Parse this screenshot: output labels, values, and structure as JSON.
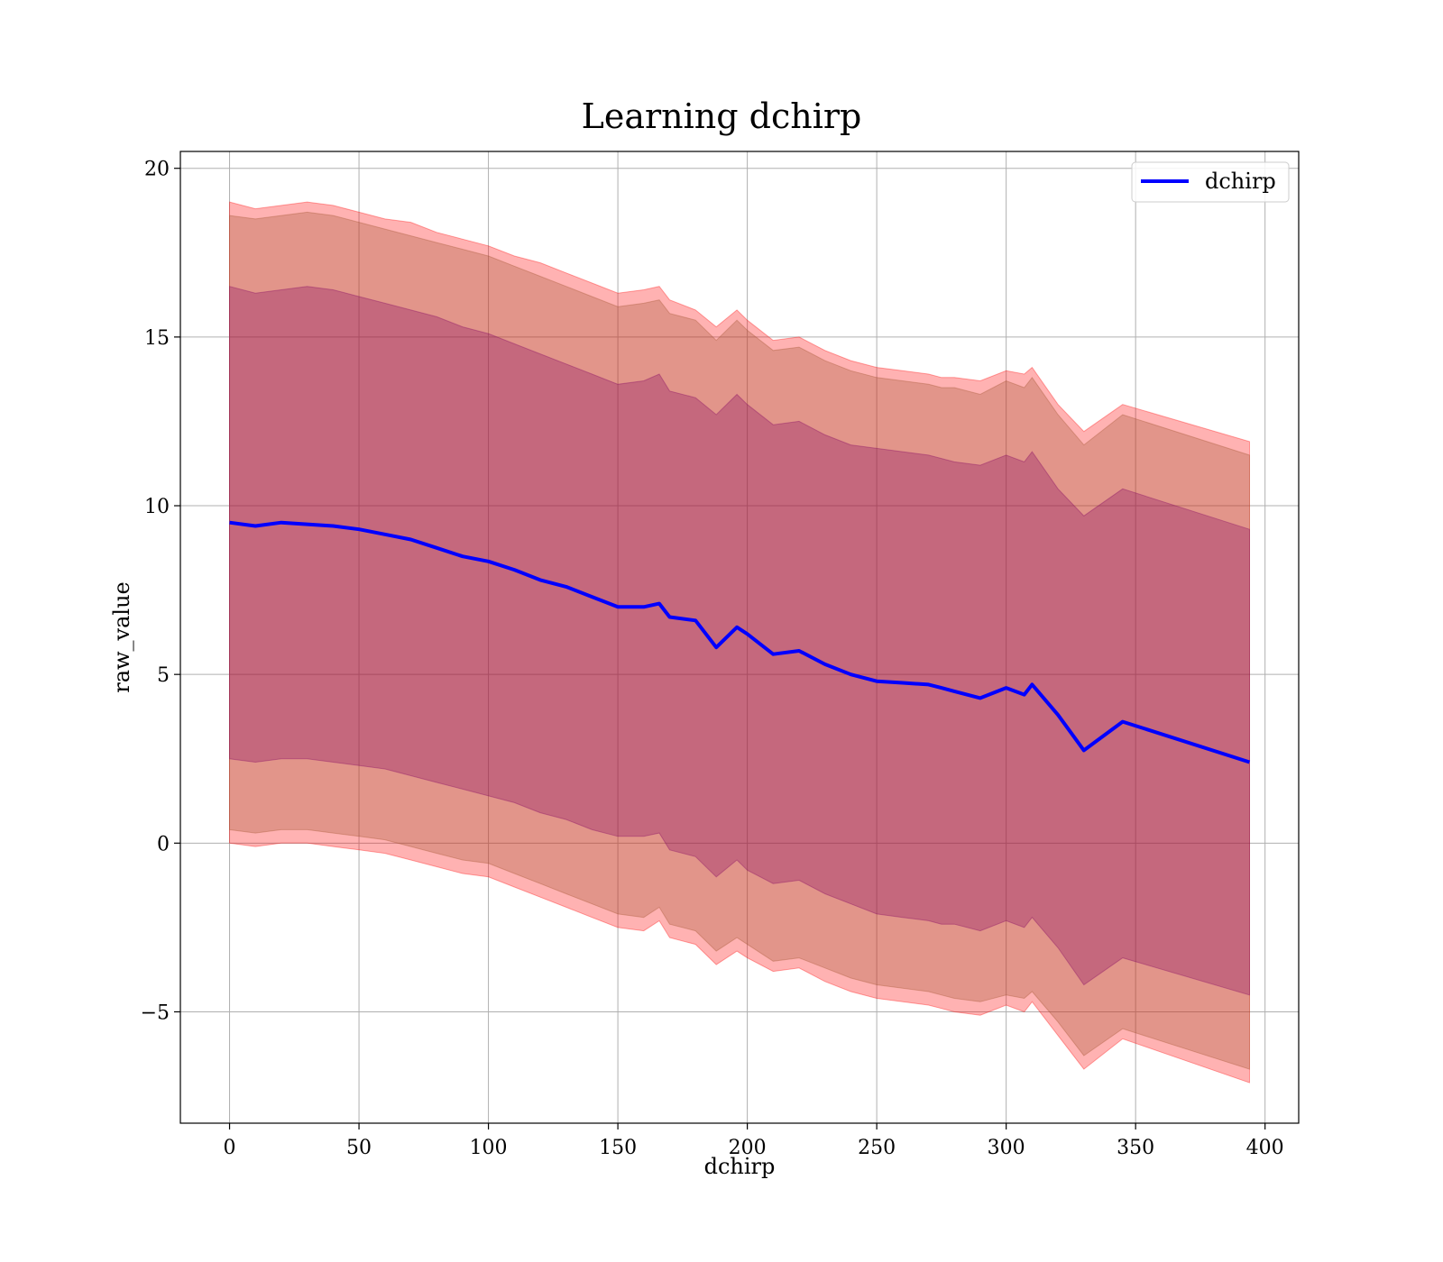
{
  "chart_data": {
    "type": "line",
    "title": "Learning dchirp",
    "xlabel": "dchirp",
    "ylabel": "raw_value",
    "xlim": [
      -19,
      413
    ],
    "ylim": [
      -8.3,
      20.5
    ],
    "x_ticks": [
      0,
      50,
      100,
      150,
      200,
      250,
      300,
      350,
      400
    ],
    "y_ticks": [
      -5,
      0,
      5,
      10,
      15,
      20
    ],
    "y_tick_labels": [
      "−5",
      "0",
      "5",
      "10",
      "15",
      "20"
    ],
    "grid": true,
    "legend": {
      "placement": "top-right",
      "entries": [
        "dchirp"
      ]
    },
    "colors": {
      "line": "#0000ff",
      "band_outer": "#ff0000",
      "band_mid": "#a0522d",
      "band_inner": "#800060"
    },
    "x": [
      0,
      10,
      20,
      30,
      40,
      50,
      60,
      70,
      80,
      90,
      100,
      110,
      120,
      130,
      140,
      150,
      160,
      166,
      170,
      180,
      188,
      196,
      200,
      210,
      220,
      230,
      240,
      250,
      260,
      270,
      275,
      280,
      290,
      300,
      307,
      310,
      320,
      330,
      345,
      394
    ],
    "series": [
      {
        "name": "dchirp",
        "values": [
          9.5,
          9.4,
          9.5,
          9.45,
          9.4,
          9.3,
          9.15,
          9.0,
          8.75,
          8.5,
          8.35,
          8.1,
          7.8,
          7.6,
          7.3,
          7.0,
          7.0,
          7.1,
          6.7,
          6.6,
          5.8,
          6.4,
          6.2,
          5.6,
          5.7,
          5.3,
          5.0,
          4.8,
          4.75,
          4.7,
          4.6,
          4.5,
          4.3,
          4.6,
          4.4,
          4.7,
          3.8,
          2.75,
          3.6,
          2.4
        ]
      }
    ],
    "bands": [
      {
        "level": "outer",
        "upper": [
          19.0,
          18.8,
          18.9,
          19.0,
          18.9,
          18.7,
          18.5,
          18.4,
          18.1,
          17.9,
          17.7,
          17.4,
          17.2,
          16.9,
          16.6,
          16.3,
          16.4,
          16.5,
          16.1,
          15.8,
          15.3,
          15.8,
          15.5,
          14.9,
          15.0,
          14.6,
          14.3,
          14.1,
          14.0,
          13.9,
          13.8,
          13.8,
          13.7,
          14.0,
          13.9,
          14.1,
          13.0,
          12.2,
          13.0,
          11.9
        ],
        "lower": [
          0.0,
          -0.1,
          0.0,
          0.0,
          -0.1,
          -0.2,
          -0.3,
          -0.5,
          -0.7,
          -0.9,
          -1.0,
          -1.3,
          -1.6,
          -1.9,
          -2.2,
          -2.5,
          -2.6,
          -2.3,
          -2.8,
          -3.0,
          -3.6,
          -3.2,
          -3.4,
          -3.8,
          -3.7,
          -4.1,
          -4.4,
          -4.6,
          -4.7,
          -4.8,
          -4.9,
          -5.0,
          -5.1,
          -4.8,
          -5.0,
          -4.7,
          -5.7,
          -6.7,
          -5.8,
          -7.1
        ]
      },
      {
        "level": "mid",
        "upper": [
          18.6,
          18.5,
          18.6,
          18.7,
          18.6,
          18.4,
          18.2,
          18.0,
          17.8,
          17.6,
          17.4,
          17.1,
          16.8,
          16.5,
          16.2,
          15.9,
          16.0,
          16.1,
          15.7,
          15.5,
          14.9,
          15.5,
          15.2,
          14.6,
          14.7,
          14.3,
          14.0,
          13.8,
          13.7,
          13.6,
          13.5,
          13.5,
          13.3,
          13.7,
          13.5,
          13.8,
          12.7,
          11.8,
          12.7,
          11.5
        ],
        "lower": [
          0.4,
          0.3,
          0.4,
          0.4,
          0.3,
          0.2,
          0.1,
          -0.1,
          -0.3,
          -0.5,
          -0.6,
          -0.9,
          -1.2,
          -1.5,
          -1.8,
          -2.1,
          -2.2,
          -1.9,
          -2.4,
          -2.6,
          -3.2,
          -2.8,
          -3.0,
          -3.5,
          -3.4,
          -3.7,
          -4.0,
          -4.2,
          -4.3,
          -4.4,
          -4.5,
          -4.6,
          -4.7,
          -4.5,
          -4.6,
          -4.4,
          -5.3,
          -6.3,
          -5.5,
          -6.7
        ]
      },
      {
        "level": "inner",
        "upper": [
          16.5,
          16.3,
          16.4,
          16.5,
          16.4,
          16.2,
          16.0,
          15.8,
          15.6,
          15.3,
          15.1,
          14.8,
          14.5,
          14.2,
          13.9,
          13.6,
          13.7,
          13.9,
          13.4,
          13.2,
          12.7,
          13.3,
          13.0,
          12.4,
          12.5,
          12.1,
          11.8,
          11.7,
          11.6,
          11.5,
          11.4,
          11.3,
          11.2,
          11.5,
          11.3,
          11.6,
          10.5,
          9.7,
          10.5,
          9.3
        ],
        "lower": [
          2.5,
          2.4,
          2.5,
          2.5,
          2.4,
          2.3,
          2.2,
          2.0,
          1.8,
          1.6,
          1.4,
          1.2,
          0.9,
          0.7,
          0.4,
          0.2,
          0.2,
          0.3,
          -0.2,
          -0.4,
          -1.0,
          -0.5,
          -0.8,
          -1.2,
          -1.1,
          -1.5,
          -1.8,
          -2.1,
          -2.2,
          -2.3,
          -2.4,
          -2.4,
          -2.6,
          -2.3,
          -2.5,
          -2.2,
          -3.1,
          -4.2,
          -3.4,
          -4.5
        ]
      }
    ]
  }
}
